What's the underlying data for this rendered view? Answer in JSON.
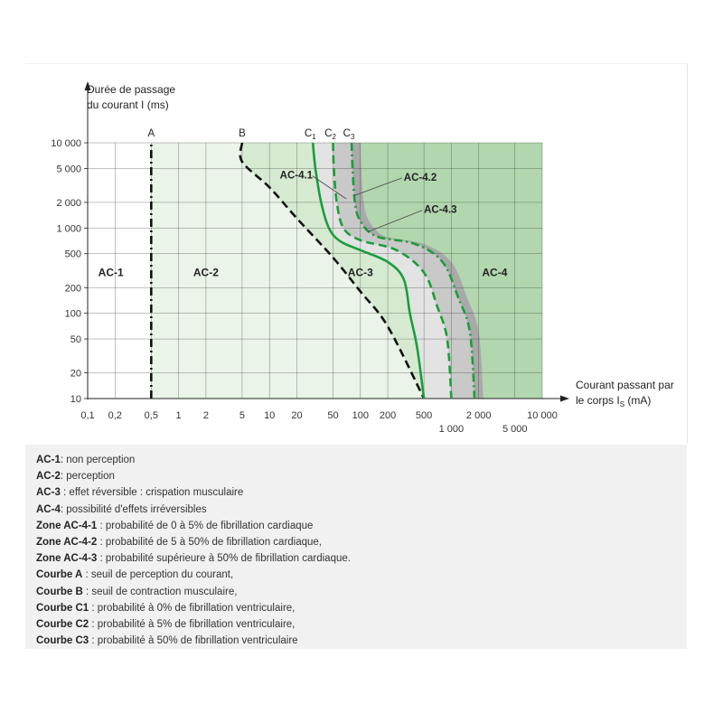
{
  "chart_data": {
    "type": "line",
    "title": "",
    "ylabel_lines": [
      "Durée de passage",
      "du courant I (ms)"
    ],
    "xlabel_lines": [
      "Courant passant par",
      "le corps I",
      "S",
      " (mA)"
    ],
    "x_scale": "log",
    "y_scale": "log",
    "xlim": [
      0.1,
      10000
    ],
    "ylim": [
      10,
      10000
    ],
    "grid": true,
    "x_ticks_main": [
      {
        "v": 0.1,
        "label": "0,1"
      },
      {
        "v": 0.2,
        "label": "0,2"
      },
      {
        "v": 0.5,
        "label": "0,5"
      },
      {
        "v": 1,
        "label": "1"
      },
      {
        "v": 2,
        "label": "2"
      },
      {
        "v": 5,
        "label": "5"
      },
      {
        "v": 10,
        "label": "10"
      },
      {
        "v": 20,
        "label": "20"
      },
      {
        "v": 50,
        "label": "50"
      },
      {
        "v": 100,
        "label": "100"
      },
      {
        "v": 200,
        "label": "200"
      },
      {
        "v": 500,
        "label": "500"
      },
      {
        "v": 2000,
        "label": "2 000"
      },
      {
        "v": 10000,
        "label": "10 000"
      }
    ],
    "x_ticks_lower": [
      {
        "v": 1000,
        "label": "1 000"
      },
      {
        "v": 5000,
        "label": "5 000"
      }
    ],
    "y_ticks": [
      {
        "v": 10,
        "label": "10"
      },
      {
        "v": 20,
        "label": "20"
      },
      {
        "v": 50,
        "label": "50"
      },
      {
        "v": 100,
        "label": "100"
      },
      {
        "v": 200,
        "label": "200"
      },
      {
        "v": 500,
        "label": "500"
      },
      {
        "v": 1000,
        "label": "1 000"
      },
      {
        "v": 2000,
        "label": "2 000"
      },
      {
        "v": 5000,
        "label": "5 000"
      },
      {
        "v": 10000,
        "label": "10 000"
      }
    ],
    "colors": {
      "ac1": "#ffffff",
      "ac2": "#eaf4e8",
      "ac3": "#d6ead2",
      "ac4": "#b2d7ae",
      "ac41": "#e3e3e3",
      "ac42": "#c9c9c9",
      "ac43": "#a9a9a9",
      "c_curve": "#1a9e3a",
      "b_curve": "#111111",
      "grid": "#222222"
    },
    "zones": [
      {
        "label": "AC-1",
        "x": 0.18,
        "y": 300
      },
      {
        "label": "AC-2",
        "x": 2,
        "y": 300
      },
      {
        "label": "AC-3",
        "x": 100,
        "y": 300
      },
      {
        "label": "AC-4",
        "x": 3000,
        "y": 300
      }
    ],
    "zone_callouts": [
      {
        "label": "AC-4.1",
        "text_x": 13,
        "text_y": 3800,
        "to_x": 70,
        "to_y": 2200
      },
      {
        "label": "AC-4.2",
        "text_x": 300,
        "text_y": 3600,
        "to_x": 85,
        "to_y": 2400
      },
      {
        "label": "AC-4.3",
        "text_x": 500,
        "text_y": 1500,
        "to_x": 120,
        "to_y": 900
      }
    ],
    "series": [
      {
        "name": "A",
        "style": "dashdot",
        "color": "black",
        "points": [
          [
            0.5,
            10
          ],
          [
            0.5,
            10000
          ]
        ]
      },
      {
        "name": "B",
        "style": "dashed",
        "color": "black",
        "points": [
          [
            5,
            10000
          ],
          [
            5,
            6000
          ],
          [
            10,
            3000
          ],
          [
            20,
            1300
          ],
          [
            50,
            450
          ],
          [
            100,
            180
          ],
          [
            200,
            70
          ],
          [
            500,
            10
          ]
        ]
      },
      {
        "name": "C",
        "sub": "1",
        "style": "solid",
        "color": "green",
        "points": [
          [
            30,
            10000
          ],
          [
            32,
            5000
          ],
          [
            37,
            2000
          ],
          [
            45,
            1000
          ],
          [
            60,
            700
          ],
          [
            100,
            550
          ],
          [
            200,
            400
          ],
          [
            300,
            250
          ],
          [
            350,
            100
          ],
          [
            420,
            40
          ],
          [
            500,
            10
          ]
        ]
      },
      {
        "name": "C",
        "sub": "2",
        "style": "dashed",
        "color": "green",
        "points": [
          [
            50,
            10000
          ],
          [
            51,
            5000
          ],
          [
            55,
            2000
          ],
          [
            65,
            1000
          ],
          [
            100,
            720
          ],
          [
            250,
            550
          ],
          [
            500,
            300
          ],
          [
            700,
            120
          ],
          [
            900,
            50
          ],
          [
            1000,
            10
          ]
        ]
      },
      {
        "name": "C",
        "sub": "3",
        "style": "dashdot",
        "color": "green",
        "points": [
          [
            80,
            10000
          ],
          [
            82,
            5000
          ],
          [
            87,
            2000
          ],
          [
            100,
            1200
          ],
          [
            150,
            800
          ],
          [
            400,
            650
          ],
          [
            800,
            400
          ],
          [
            1200,
            150
          ],
          [
            1600,
            60
          ],
          [
            1800,
            10
          ]
        ]
      }
    ],
    "curve_labels": [
      {
        "name": "A",
        "x": 0.5
      },
      {
        "name": "B",
        "x": 5
      },
      {
        "name": "C",
        "sub": "1",
        "x": 30
      },
      {
        "name": "C",
        "sub": "2",
        "x": 50
      },
      {
        "name": "C",
        "sub": "3",
        "x": 80
      }
    ]
  },
  "legend": [
    {
      "key": "AC-1",
      "text": ": non perception"
    },
    {
      "key": "AC-2",
      "text": ": perception"
    },
    {
      "key": "AC-3",
      "text": " : effet réversible : crispation musculaire"
    },
    {
      "key": "AC-4",
      "text": ": possibilité d'effets irréversibles"
    },
    {
      "key": "Zone AC-4-1",
      "text": " : probabilité de 0 à 5% de fibrillation cardiaque"
    },
    {
      "key": "Zone AC-4-2",
      "text": " : probabilité de 5 à 50% de fibrillation cardiaque,"
    },
    {
      "key": "Zone AC-4-3",
      "text": " : probabilité supérieure à 50% de fibrillation cardiaque."
    },
    {
      "key": "Courbe A",
      "text": " : seuil de perception du courant,"
    },
    {
      "key": "Courbe B",
      "text": " : seuil de contraction musculaire,"
    },
    {
      "key": "Courbe C1",
      "text": " : probabilité à 0% de fibrillation ventriculaire,"
    },
    {
      "key": "Courbe C2",
      "text": " : probabilité à 5% de fibrillation ventriculaire,"
    },
    {
      "key": "Courbe C3",
      "text": " : probabilité à 50% de fibrillation ventriculaire"
    }
  ]
}
